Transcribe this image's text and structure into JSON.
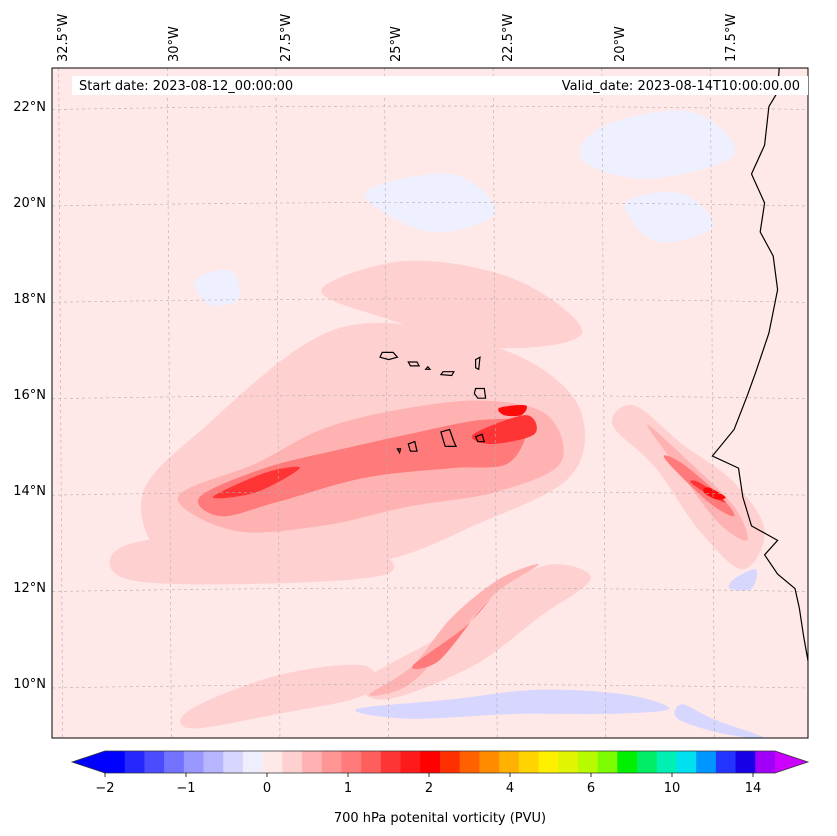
{
  "map": {
    "start_date": "Start date: 2023-08-12_00:00:00",
    "valid_date": "Valid_date: 2023-08-14T10:00:00.00",
    "lon_labels": [
      "32.5°W",
      "30°W",
      "27.5°W",
      "25°W",
      "22.5°W",
      "20°W",
      "17.5°W"
    ],
    "lat_labels": [
      "22°N",
      "20°N",
      "18°N",
      "16°N",
      "14°N",
      "12°N",
      "10°N"
    ],
    "lon_range": [
      -32.7,
      -15.3
    ],
    "lat_range": [
      8.9,
      22.8
    ]
  },
  "colorbar": {
    "title": "700 hPa potenital vorticity (PVU)",
    "tick_labels": [
      "−2",
      "−1",
      "0",
      "1",
      "2",
      "4",
      "6",
      "10",
      "14"
    ],
    "colors": [
      "#0000ff",
      "#2626ff",
      "#4c4cff",
      "#7272ff",
      "#9898ff",
      "#b6b6ff",
      "#d6d6ff",
      "#eeeeff",
      "#ffe8e8",
      "#ffd0d0",
      "#ffb2b2",
      "#ff9696",
      "#ff7a7a",
      "#ff5e5e",
      "#ff3434",
      "#ff1a1a",
      "#ff0000",
      "#ff3000",
      "#ff6000",
      "#ff8c00",
      "#ffb000",
      "#ffd200",
      "#fff000",
      "#e0f500",
      "#b8fa00",
      "#7cfc00",
      "#00f000",
      "#00ee66",
      "#00f0b4",
      "#00e0ee",
      "#0096ff",
      "#2434ff",
      "#1800e6",
      "#a000f8"
    ],
    "under_color": "#0000ff",
    "over_color": "#cc00ff"
  },
  "colors": {
    "background_field": "#ffe8e8",
    "weak_negative": "#eef0ff",
    "negative": "#d6d6ff",
    "pv_low": "#ffd0d0",
    "pv_mid": "#ffb2b2",
    "pv_high": "#ff7a7a",
    "pv_max": "#ff3434",
    "pv_peak": "#ff0a0a",
    "coast": "#000000"
  },
  "features": {
    "pv_bands": [
      {
        "level": "pv_low",
        "points": [
          [
            -30.6,
            14.0
          ],
          [
            -29.0,
            15.5
          ],
          [
            -27.0,
            17.0
          ],
          [
            -25.5,
            17.5
          ],
          [
            -23.5,
            17.3
          ],
          [
            -21.5,
            16.6
          ],
          [
            -20.5,
            15.6
          ],
          [
            -20.8,
            14.3
          ],
          [
            -23.0,
            13.3
          ],
          [
            -25.0,
            12.6
          ],
          [
            -27.5,
            12.4
          ],
          [
            -30.0,
            12.6
          ]
        ]
      },
      {
        "level": "pv_low",
        "points": [
          [
            -26.5,
            18.2
          ],
          [
            -24.5,
            18.8
          ],
          [
            -22.0,
            18.4
          ],
          [
            -20.5,
            17.3
          ],
          [
            -22.5,
            17.0
          ],
          [
            -25.0,
            17.6
          ]
        ]
      },
      {
        "level": "pv_low",
        "points": [
          [
            -31.0,
            12.9
          ],
          [
            -28.0,
            13.2
          ],
          [
            -25.5,
            12.9
          ],
          [
            -25.0,
            12.3
          ],
          [
            -28.0,
            12.1
          ],
          [
            -31.0,
            12.2
          ]
        ]
      },
      {
        "level": "pv_low",
        "points": [
          [
            -25.5,
            10.1
          ],
          [
            -23.8,
            11.0
          ],
          [
            -22.5,
            12.0
          ],
          [
            -21.2,
            12.5
          ],
          [
            -20.3,
            12.2
          ],
          [
            -21.5,
            11.4
          ],
          [
            -23.0,
            10.4
          ],
          [
            -25.0,
            9.7
          ]
        ]
      },
      {
        "level": "pv_low",
        "points": [
          [
            -19.3,
            15.8
          ],
          [
            -18.2,
            15.0
          ],
          [
            -17.0,
            14.2
          ],
          [
            -16.3,
            13.2
          ],
          [
            -16.8,
            12.4
          ],
          [
            -17.8,
            13.2
          ],
          [
            -18.8,
            14.5
          ],
          [
            -19.8,
            15.4
          ]
        ]
      },
      {
        "level": "pv_low",
        "points": [
          [
            -29.5,
            9.5
          ],
          [
            -27.5,
            10.2
          ],
          [
            -25.5,
            10.4
          ],
          [
            -25.5,
            9.8
          ],
          [
            -27.5,
            9.4
          ],
          [
            -29.5,
            9.1
          ]
        ]
      },
      {
        "level": "pv_mid",
        "points": [
          [
            -29.8,
            13.9
          ],
          [
            -28.0,
            14.6
          ],
          [
            -26.5,
            15.3
          ],
          [
            -24.8,
            15.7
          ],
          [
            -22.8,
            15.9
          ],
          [
            -21.3,
            15.6
          ],
          [
            -21.0,
            14.6
          ],
          [
            -22.5,
            14.0
          ],
          [
            -24.5,
            13.7
          ],
          [
            -26.5,
            13.3
          ],
          [
            -28.5,
            13.2
          ]
        ]
      },
      {
        "level": "pv_mid",
        "points": [
          [
            -23.5,
            11.4
          ],
          [
            -22.4,
            12.2
          ],
          [
            -21.5,
            12.5
          ],
          [
            -22.5,
            11.9
          ],
          [
            -23.4,
            11.0
          ],
          [
            -24.5,
            10.0
          ],
          [
            -25.4,
            9.8
          ],
          [
            -24.4,
            10.4
          ]
        ]
      },
      {
        "level": "pv_mid",
        "points": [
          [
            -19.0,
            15.4
          ],
          [
            -18.0,
            14.6
          ],
          [
            -17.0,
            13.7
          ],
          [
            -16.7,
            13.0
          ],
          [
            -17.4,
            13.4
          ],
          [
            -18.3,
            14.5
          ]
        ]
      },
      {
        "level": "pv_high",
        "points": [
          [
            -29.3,
            13.9
          ],
          [
            -27.8,
            14.5
          ],
          [
            -26.0,
            14.9
          ],
          [
            -24.5,
            15.2
          ],
          [
            -22.8,
            15.5
          ],
          [
            -21.8,
            15.4
          ],
          [
            -22.2,
            14.6
          ],
          [
            -23.5,
            14.5
          ],
          [
            -25.5,
            14.3
          ],
          [
            -27.5,
            13.8
          ],
          [
            -28.8,
            13.5
          ]
        ]
      },
      {
        "level": "pv_high",
        "points": [
          [
            -23.2,
            11.2
          ],
          [
            -22.6,
            11.8
          ],
          [
            -22.9,
            11.5
          ],
          [
            -23.8,
            10.5
          ],
          [
            -24.4,
            10.4
          ]
        ]
      },
      {
        "level": "pv_high",
        "points": [
          [
            -18.2,
            14.6
          ],
          [
            -17.3,
            13.9
          ],
          [
            -17.0,
            13.5
          ],
          [
            -17.6,
            13.8
          ],
          [
            -18.6,
            14.7
          ]
        ]
      },
      {
        "level": "pv_max",
        "points": [
          [
            -29.0,
            13.9
          ],
          [
            -27.8,
            14.4
          ],
          [
            -27.0,
            14.5
          ],
          [
            -28.0,
            14.0
          ]
        ]
      },
      {
        "level": "pv_max",
        "points": [
          [
            -23.0,
            15.2
          ],
          [
            -21.8,
            15.6
          ],
          [
            -21.6,
            15.2
          ],
          [
            -22.6,
            15.0
          ]
        ]
      },
      {
        "level": "pv_max",
        "points": [
          [
            -17.8,
            14.2
          ],
          [
            -17.2,
            13.8
          ],
          [
            -17.5,
            13.9
          ],
          [
            -18.0,
            14.2
          ]
        ]
      },
      {
        "level": "pv_peak",
        "points": [
          [
            -22.4,
            15.75
          ],
          [
            -21.8,
            15.8
          ],
          [
            -21.9,
            15.6
          ],
          [
            -22.3,
            15.6
          ]
        ]
      },
      {
        "level": "pv_peak",
        "points": [
          [
            -17.6,
            14.1
          ],
          [
            -17.2,
            13.9
          ],
          [
            -17.4,
            13.85
          ],
          [
            -17.7,
            14.0
          ]
        ]
      }
    ],
    "negative_bands": [
      {
        "level": "negative",
        "points": [
          [
            -25.7,
            9.5
          ],
          [
            -23.5,
            9.7
          ],
          [
            -21.5,
            9.9
          ],
          [
            -19.5,
            9.8
          ],
          [
            -18.5,
            9.5
          ],
          [
            -20.0,
            9.4
          ],
          [
            -22.0,
            9.4
          ],
          [
            -24.5,
            9.3
          ]
        ]
      },
      {
        "level": "negative",
        "points": [
          [
            -18.2,
            9.6
          ],
          [
            -17.5,
            9.3
          ],
          [
            -16.3,
            8.9
          ],
          [
            -17.3,
            9.0
          ],
          [
            -18.3,
            9.3
          ]
        ]
      },
      {
        "level": "negative",
        "points": [
          [
            -17.0,
            12.2
          ],
          [
            -16.5,
            12.4
          ],
          [
            -16.6,
            12.0
          ],
          [
            -17.1,
            12.0
          ]
        ]
      },
      {
        "level": "weak_negative",
        "points": [
          [
            -20.0,
            21.6
          ],
          [
            -18.0,
            21.9
          ],
          [
            -17.0,
            21.0
          ],
          [
            -19.0,
            20.5
          ],
          [
            -20.5,
            20.9
          ]
        ]
      },
      {
        "level": "weak_negative",
        "points": [
          [
            -25.5,
            20.2
          ],
          [
            -23.5,
            20.6
          ],
          [
            -22.5,
            19.8
          ],
          [
            -24.0,
            19.4
          ]
        ]
      },
      {
        "level": "weak_negative",
        "points": [
          [
            -19.5,
            20.0
          ],
          [
            -18.2,
            20.2
          ],
          [
            -17.5,
            19.5
          ],
          [
            -18.8,
            19.2
          ]
        ]
      },
      {
        "level": "weak_negative",
        "points": [
          [
            -29.4,
            18.4
          ],
          [
            -28.6,
            18.6
          ],
          [
            -28.4,
            18.0
          ],
          [
            -29.1,
            17.9
          ]
        ]
      }
    ],
    "coast": [
      [
        -15.95,
        23.0
      ],
      [
        -16.0,
        22.3
      ],
      [
        -16.2,
        22.0
      ],
      [
        -16.3,
        21.2
      ],
      [
        -16.6,
        20.6
      ],
      [
        -16.3,
        20.0
      ],
      [
        -16.4,
        19.4
      ],
      [
        -16.1,
        18.9
      ],
      [
        -16.0,
        18.2
      ],
      [
        -16.2,
        17.3
      ],
      [
        -16.5,
        16.5
      ],
      [
        -16.7,
        16.0
      ],
      [
        -17.0,
        15.3
      ],
      [
        -17.5,
        14.75
      ],
      [
        -16.9,
        14.5
      ],
      [
        -16.8,
        13.9
      ],
      [
        -16.6,
        13.3
      ],
      [
        -16.0,
        13.0
      ],
      [
        -16.3,
        12.7
      ],
      [
        -16.0,
        12.3
      ],
      [
        -15.6,
        12.0
      ],
      [
        -15.5,
        11.6
      ],
      [
        -15.4,
        11.0
      ],
      [
        -15.3,
        10.5
      ]
    ],
    "islands": [
      [
        [
          -25.1,
          16.9
        ],
        [
          -24.85,
          16.9
        ],
        [
          -24.75,
          16.8
        ],
        [
          -24.95,
          16.75
        ],
        [
          -25.15,
          16.8
        ]
      ],
      [
        [
          -24.5,
          16.7
        ],
        [
          -24.3,
          16.7
        ],
        [
          -24.25,
          16.62
        ],
        [
          -24.45,
          16.62
        ]
      ],
      [
        [
          -24.05,
          16.6
        ],
        [
          -24.0,
          16.55
        ],
        [
          -24.1,
          16.55
        ]
      ],
      [
        [
          -23.7,
          16.5
        ],
        [
          -23.45,
          16.5
        ],
        [
          -23.5,
          16.42
        ],
        [
          -23.75,
          16.44
        ]
      ],
      [
        [
          -22.95,
          16.75
        ],
        [
          -22.85,
          16.8
        ],
        [
          -22.88,
          16.55
        ],
        [
          -22.95,
          16.58
        ]
      ],
      [
        [
          -22.95,
          16.15
        ],
        [
          -22.75,
          16.15
        ],
        [
          -22.72,
          15.95
        ],
        [
          -22.9,
          15.95
        ],
        [
          -22.98,
          16.05
        ]
      ],
      [
        [
          -23.75,
          15.25
        ],
        [
          -23.55,
          15.3
        ],
        [
          -23.45,
          15.05
        ],
        [
          -23.4,
          14.95
        ],
        [
          -23.65,
          14.95
        ],
        [
          -23.7,
          15.1
        ]
      ],
      [
        [
          -24.5,
          15.0
        ],
        [
          -24.35,
          15.05
        ],
        [
          -24.3,
          14.85
        ],
        [
          -24.45,
          14.85
        ]
      ],
      [
        [
          -24.75,
          14.9
        ],
        [
          -24.68,
          14.9
        ],
        [
          -24.7,
          14.82
        ]
      ],
      [
        [
          -22.95,
          15.15
        ],
        [
          -22.8,
          15.2
        ],
        [
          -22.75,
          15.05
        ],
        [
          -22.9,
          15.05
        ]
      ]
    ]
  }
}
